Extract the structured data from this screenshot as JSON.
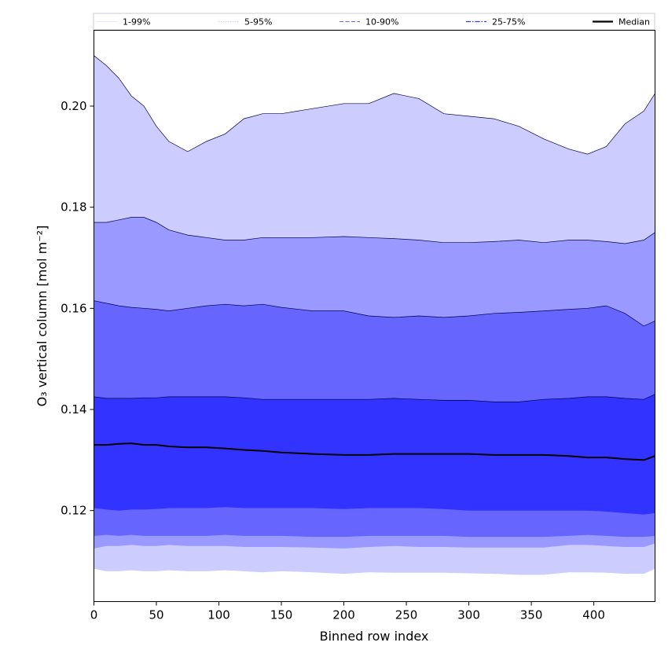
{
  "chart_data": {
    "type": "area",
    "xlabel": "Binned row index",
    "ylabel": "O₃ vertical column [mol m⁻²]",
    "xlim": [
      0,
      449
    ],
    "ylim": [
      0.102,
      0.215
    ],
    "x_ticks": [
      0,
      50,
      100,
      150,
      200,
      250,
      300,
      350,
      400
    ],
    "y_ticks": [
      0.12,
      0.14,
      0.16,
      0.18,
      0.2
    ],
    "y_tick_labels": [
      "0.12",
      "0.14",
      "0.16",
      "0.18",
      "0.20"
    ],
    "grid": false,
    "legend_position": "top",
    "legend": [
      {
        "label": "1-99%",
        "color": "#ccccff",
        "style": "solid"
      },
      {
        "label": "5-95%",
        "color": "#9999ff",
        "style": "dotted"
      },
      {
        "label": "10-90%",
        "color": "#6666ff",
        "style": "dashed"
      },
      {
        "label": "25-75%",
        "color": "#3333ff",
        "style": "dashdot"
      },
      {
        "label": "Median",
        "color": "#000000",
        "style": "solid"
      }
    ],
    "x": [
      0,
      10,
      20,
      30,
      40,
      50,
      60,
      75,
      90,
      105,
      120,
      135,
      150,
      175,
      200,
      220,
      240,
      260,
      280,
      300,
      320,
      340,
      360,
      380,
      395,
      410,
      425,
      440,
      449
    ],
    "bands": [
      {
        "name": "1-99%",
        "color": "#ccccff",
        "lower": [
          0.1085,
          0.108,
          0.108,
          0.1082,
          0.108,
          0.108,
          0.1082,
          0.108,
          0.108,
          0.1082,
          0.108,
          0.1078,
          0.108,
          0.1078,
          0.1075,
          0.1078,
          0.1077,
          0.1077,
          0.1077,
          0.1076,
          0.1075,
          0.1073,
          0.1073,
          0.1078,
          0.1078,
          0.1077,
          0.1075,
          0.1075,
          0.1085
        ],
        "upper": [
          0.21,
          0.208,
          0.2055,
          0.202,
          0.2,
          0.196,
          0.193,
          0.191,
          0.193,
          0.1945,
          0.1975,
          0.1985,
          0.1985,
          0.1995,
          0.2005,
          0.2005,
          0.2025,
          0.2015,
          0.1985,
          0.198,
          0.1975,
          0.196,
          0.1935,
          0.1915,
          0.1905,
          0.192,
          0.1965,
          0.199,
          0.2025
        ]
      },
      {
        "name": "5-95%",
        "color": "#9999ff",
        "lower": [
          0.1125,
          0.113,
          0.113,
          0.1132,
          0.113,
          0.113,
          0.1132,
          0.113,
          0.113,
          0.113,
          0.1128,
          0.1128,
          0.1128,
          0.1127,
          0.1125,
          0.1128,
          0.113,
          0.1128,
          0.1128,
          0.1127,
          0.1127,
          0.1127,
          0.1127,
          0.1132,
          0.1132,
          0.113,
          0.1128,
          0.1128,
          0.1135
        ],
        "upper": [
          0.177,
          0.177,
          0.1775,
          0.178,
          0.178,
          0.177,
          0.1755,
          0.1745,
          0.174,
          0.1735,
          0.1735,
          0.174,
          0.174,
          0.174,
          0.1742,
          0.174,
          0.1738,
          0.1735,
          0.173,
          0.173,
          0.1732,
          0.1735,
          0.173,
          0.1735,
          0.1735,
          0.1732,
          0.1728,
          0.1735,
          0.175
        ]
      },
      {
        "name": "10-90%",
        "color": "#6666ff",
        "lower": [
          0.115,
          0.1152,
          0.115,
          0.1152,
          0.115,
          0.115,
          0.115,
          0.115,
          0.115,
          0.1152,
          0.115,
          0.115,
          0.115,
          0.1148,
          0.1148,
          0.115,
          0.115,
          0.115,
          0.115,
          0.1148,
          0.1148,
          0.1148,
          0.1148,
          0.115,
          0.1152,
          0.115,
          0.1148,
          0.1148,
          0.115
        ],
        "upper": [
          0.1615,
          0.161,
          0.1605,
          0.1602,
          0.16,
          0.1598,
          0.1595,
          0.16,
          0.1605,
          0.1608,
          0.1605,
          0.1608,
          0.1602,
          0.1595,
          0.1595,
          0.1585,
          0.1582,
          0.1585,
          0.1582,
          0.1585,
          0.159,
          0.1592,
          0.1595,
          0.1598,
          0.16,
          0.1605,
          0.159,
          0.1565,
          0.1575
        ]
      },
      {
        "name": "25-75%",
        "color": "#3333ff",
        "lower": [
          0.1205,
          0.1202,
          0.12,
          0.1202,
          0.1202,
          0.1203,
          0.1205,
          0.1205,
          0.1205,
          0.1207,
          0.1205,
          0.1205,
          0.1205,
          0.1205,
          0.1203,
          0.1205,
          0.1205,
          0.1205,
          0.1203,
          0.12,
          0.12,
          0.12,
          0.12,
          0.12,
          0.12,
          0.1198,
          0.1195,
          0.1192,
          0.1195
        ],
        "upper": [
          0.1425,
          0.1422,
          0.1422,
          0.1422,
          0.1423,
          0.1423,
          0.1425,
          0.1425,
          0.1425,
          0.1425,
          0.1423,
          0.142,
          0.142,
          0.142,
          0.142,
          0.142,
          0.1422,
          0.142,
          0.1418,
          0.1418,
          0.1415,
          0.1415,
          0.142,
          0.1422,
          0.1425,
          0.1425,
          0.1422,
          0.142,
          0.143
        ]
      }
    ],
    "median": {
      "name": "Median",
      "color": "#000000",
      "values": [
        0.133,
        0.133,
        0.1332,
        0.1333,
        0.133,
        0.133,
        0.1327,
        0.1325,
        0.1325,
        0.1323,
        0.132,
        0.1318,
        0.1315,
        0.1312,
        0.131,
        0.131,
        0.1312,
        0.1312,
        0.1312,
        0.1312,
        0.131,
        0.131,
        0.131,
        0.1308,
        0.1305,
        0.1305,
        0.1302,
        0.13,
        0.1308
      ]
    }
  }
}
